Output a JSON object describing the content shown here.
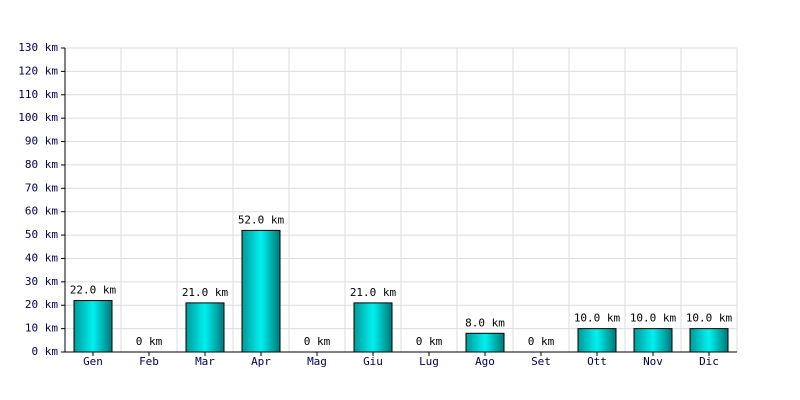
{
  "chart_data": {
    "type": "bar",
    "categories": [
      "Gen",
      "Feb",
      "Mar",
      "Apr",
      "Mag",
      "Giu",
      "Lug",
      "Ago",
      "Set",
      "Ott",
      "Nov",
      "Dic"
    ],
    "values": [
      22,
      0,
      21,
      52,
      0,
      21,
      0,
      8,
      0,
      10,
      10,
      10
    ],
    "value_labels": [
      "22.0 km",
      "0 km",
      "21.0 km",
      "52.0 km",
      "0 km",
      "21.0 km",
      "0 km",
      "8.0 km",
      "0 km",
      "10.0 km",
      "10.0 km",
      "10.0 km"
    ],
    "color": "#00d0d0",
    "ylim": [
      0,
      130
    ],
    "yticks": [
      {
        "value": 0,
        "label": "0 km"
      },
      {
        "value": 10,
        "label": "10 km"
      },
      {
        "value": 20,
        "label": "20 km"
      },
      {
        "value": 30,
        "label": "30 km"
      },
      {
        "value": 40,
        "label": "40 km"
      },
      {
        "value": 50,
        "label": "50 km"
      },
      {
        "value": 60,
        "label": "60 km"
      },
      {
        "value": 70,
        "label": "70 km"
      },
      {
        "value": 80,
        "label": "80 km"
      },
      {
        "value": 90,
        "label": "90 km"
      },
      {
        "value": 100,
        "label": "100 km"
      },
      {
        "value": 110,
        "label": "110 km"
      },
      {
        "value": 120,
        "label": "120 km"
      },
      {
        "value": 130,
        "label": "130 km"
      }
    ],
    "grid": true
  }
}
